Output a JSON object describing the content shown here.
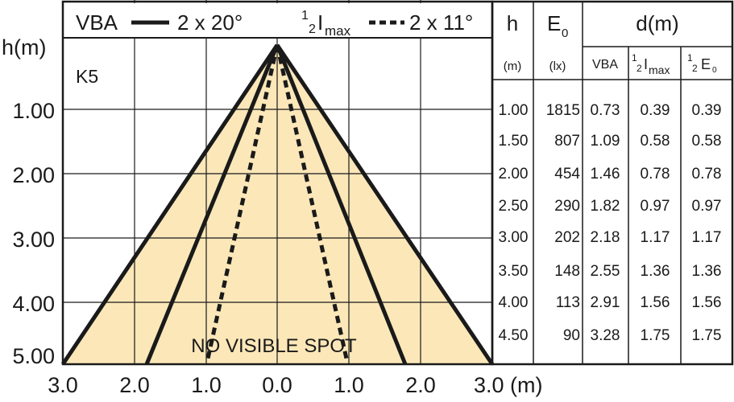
{
  "legend": {
    "vba_label": "VBA",
    "vba_angle": "2 x 20°",
    "half_i_num": "1",
    "half_i_den": "2",
    "half_i_base": "I",
    "half_i_sub": "max",
    "half_i_angle": "2 x 11°"
  },
  "chart": {
    "lamp_code": "K5",
    "y_axis_label": "h(m)",
    "y_ticks": [
      "1.00",
      "2.00",
      "3.00",
      "4.00",
      "5.00"
    ],
    "x_ticks": [
      "3.0",
      "2.0",
      "1.0",
      "0.0",
      "1.0",
      "2.0"
    ],
    "x_last_tick": "3.0 (m)",
    "annotation": "NO VISIBLE SPOT",
    "fill_color": "#fbe7b8",
    "line_color": "#1a1a1a"
  },
  "table": {
    "col_h": "h",
    "col_e0_base": "E",
    "col_e0_sub": "0",
    "col_d": "d(m)",
    "unit_h": "(m)",
    "unit_e0": "(lx)",
    "sub_vba": "VBA",
    "sub_half_i_num": "1",
    "sub_half_i_den": "2",
    "sub_half_i_base": "I",
    "sub_half_i_sub": "max",
    "sub_half_e_num": "1",
    "sub_half_e_den": "2",
    "sub_half_e_base": "E",
    "sub_half_e_sub": "0",
    "rows": [
      {
        "h": "1.00",
        "e0": "1815",
        "vba": "0.73",
        "half_i": "0.39",
        "half_e": "0.39"
      },
      {
        "h": "1.50",
        "e0": "807",
        "vba": "1.09",
        "half_i": "0.58",
        "half_e": "0.58"
      },
      {
        "h": "2.00",
        "e0": "454",
        "vba": "1.46",
        "half_i": "0.78",
        "half_e": "0.78"
      },
      {
        "h": "2.50",
        "e0": "290",
        "vba": "1.82",
        "half_i": "0.97",
        "half_e": "0.97"
      },
      {
        "h": "3.00",
        "e0": "202",
        "vba": "2.18",
        "half_i": "1.17",
        "half_e": "1.17"
      },
      {
        "h": "3.50",
        "e0": "148",
        "vba": "2.55",
        "half_i": "1.36",
        "half_e": "1.36"
      },
      {
        "h": "4.00",
        "e0": "113",
        "vba": "2.91",
        "half_i": "1.56",
        "half_e": "1.56"
      },
      {
        "h": "4.50",
        "e0": "90",
        "vba": "3.28",
        "half_i": "1.75",
        "half_e": "1.75"
      }
    ]
  }
}
